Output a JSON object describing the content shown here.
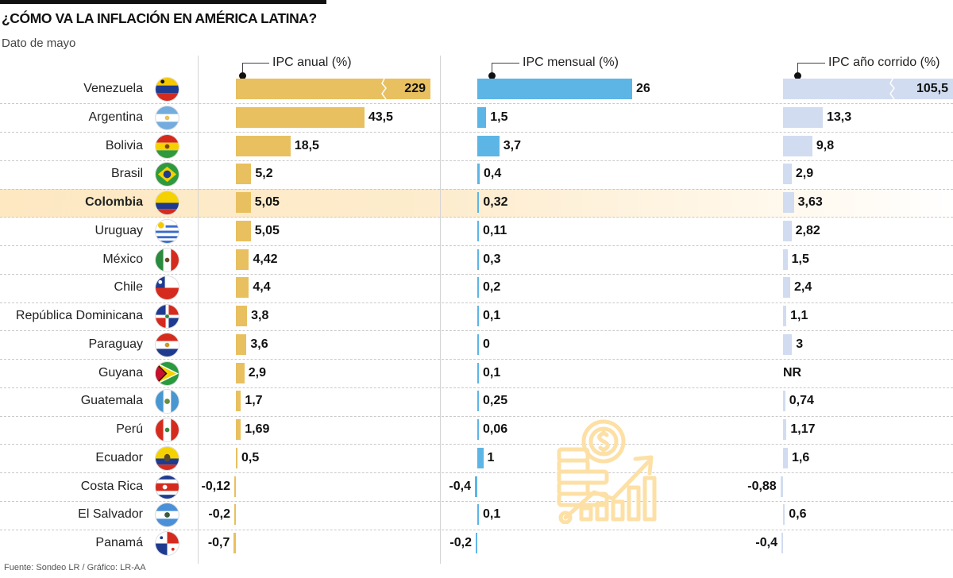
{
  "title": "¿CÓMO VA LA INFLACIÓN EN AMÉRICA LATINA?",
  "subtitle": "Dato de mayo",
  "source": "Fuente: Sondeo LR / Gráfico: LR-AA",
  "highlight_country": "Colombia",
  "colors": {
    "annual": "#e8c060",
    "monthly": "#5db5e6",
    "ytd": "#d1dcf0",
    "highlight": "#fde8c2",
    "icon": "#fde0a6"
  },
  "chart_data": {
    "type": "bar",
    "orientation": "horizontal",
    "title": "¿CÓMO VA LA INFLACIÓN EN AMÉRICA LATINA?",
    "subtitle": "Dato de mayo",
    "categories": [
      "Venezuela",
      "Argentina",
      "Bolivia",
      "Brasil",
      "Colombia",
      "Uruguay",
      "México",
      "Chile",
      "República Dominicana",
      "Paraguay",
      "Guyana",
      "Guatemala",
      "Perú",
      "Ecuador",
      "Costa Rica",
      "El Salvador",
      "Panamá"
    ],
    "flags": [
      "flag-venezuela",
      "flag-argentina",
      "flag-bolivia",
      "flag-brazil",
      "flag-colombia",
      "flag-uruguay",
      "flag-mexico",
      "flag-chile",
      "flag-dominican-republic",
      "flag-paraguay",
      "flag-guyana",
      "flag-guatemala",
      "flag-peru",
      "flag-ecuador",
      "flag-costa-rica",
      "flag-el-salvador",
      "flag-panama"
    ],
    "series": [
      {
        "name": "IPC anual (%)",
        "key": "annual",
        "values": [
          229,
          43.5,
          18.5,
          5.2,
          5.05,
          5.05,
          4.42,
          4.4,
          3.8,
          3.6,
          2.9,
          1.7,
          1.69,
          0.5,
          -0.12,
          -0.2,
          -0.7
        ],
        "labels": [
          "229",
          "43,5",
          "18,5",
          "5,2",
          "5,05",
          "5,05",
          "4,42",
          "4,4",
          "3,8",
          "3,6",
          "2,9",
          "1,7",
          "1,69",
          "0,5",
          "-0,12",
          "-0,2",
          "-0,7"
        ],
        "truncated": [
          true,
          false,
          false,
          false,
          false,
          false,
          false,
          false,
          false,
          false,
          false,
          false,
          false,
          false,
          false,
          false,
          false
        ]
      },
      {
        "name": "IPC mensual (%)",
        "key": "monthly",
        "values": [
          26,
          1.5,
          3.7,
          0.4,
          0.32,
          0.11,
          0.3,
          0.2,
          0.1,
          0,
          0.1,
          0.25,
          0.06,
          1,
          -0.4,
          0.1,
          -0.2
        ],
        "labels": [
          "26",
          "1,5",
          "3,7",
          "0,4",
          "0,32",
          "0,11",
          "0,3",
          "0,2",
          "0,1",
          "0",
          "0,1",
          "0,25",
          "0,06",
          "1",
          "-0,4",
          "0,1",
          "-0,2"
        ],
        "truncated": [
          false,
          false,
          false,
          false,
          false,
          false,
          false,
          false,
          false,
          false,
          false,
          false,
          false,
          false,
          false,
          false,
          false
        ]
      },
      {
        "name": "IPC año corrido (%)",
        "key": "ytd",
        "values": [
          105.5,
          13.3,
          9.8,
          2.9,
          3.63,
          2.82,
          1.5,
          2.4,
          1.1,
          3,
          null,
          0.74,
          1.17,
          1.6,
          -0.88,
          0.6,
          -0.4
        ],
        "labels": [
          "105,5",
          "13,3",
          "9,8",
          "2,9",
          "3,63",
          "2,82",
          "1,5",
          "2,4",
          "1,1",
          "3",
          "NR",
          "0,74",
          "1,17",
          "1,6",
          "-0,88",
          "0,6",
          "-0,4"
        ],
        "truncated": [
          true,
          false,
          false,
          false,
          false,
          false,
          false,
          false,
          false,
          false,
          false,
          false,
          false,
          false,
          false,
          false,
          false
        ]
      }
    ],
    "xlabel": "",
    "ylabel": "",
    "grid": false,
    "legend": "none"
  }
}
